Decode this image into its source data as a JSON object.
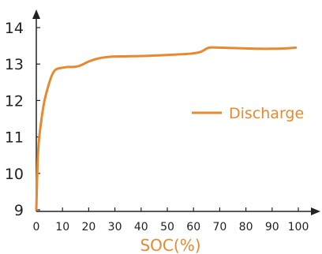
{
  "chart_data": {
    "type": "line",
    "title": "",
    "xlabel": "SOC(%)",
    "ylabel": "",
    "xlim": [
      0,
      100
    ],
    "ylim": [
      9,
      14
    ],
    "x_ticks": [
      "0",
      "10",
      "20",
      "30",
      "40",
      "50",
      "60",
      "70",
      "80",
      "90",
      "100"
    ],
    "y_ticks": [
      "9",
      "10",
      "11",
      "12",
      "13",
      "14"
    ],
    "grid": false,
    "legend_position": "center-right",
    "colors": {
      "series": "#e8892f",
      "axis": "#222222"
    },
    "series": [
      {
        "name": "Discharge",
        "x": [
          0,
          0.5,
          1,
          2,
          3,
          4,
          5,
          6,
          7,
          8,
          10,
          12,
          14,
          16,
          18,
          20,
          24,
          28,
          32,
          40,
          50,
          58,
          62,
          64,
          66,
          70,
          75,
          80,
          85,
          90,
          95,
          99
        ],
        "y": [
          9.0,
          10.3,
          10.9,
          11.5,
          11.95,
          12.25,
          12.5,
          12.7,
          12.82,
          12.87,
          12.9,
          12.92,
          12.92,
          12.94,
          13.0,
          13.07,
          13.16,
          13.2,
          13.21,
          13.22,
          13.25,
          13.28,
          13.32,
          13.38,
          13.45,
          13.45,
          13.44,
          13.43,
          13.42,
          13.42,
          13.43,
          13.45
        ]
      }
    ]
  }
}
